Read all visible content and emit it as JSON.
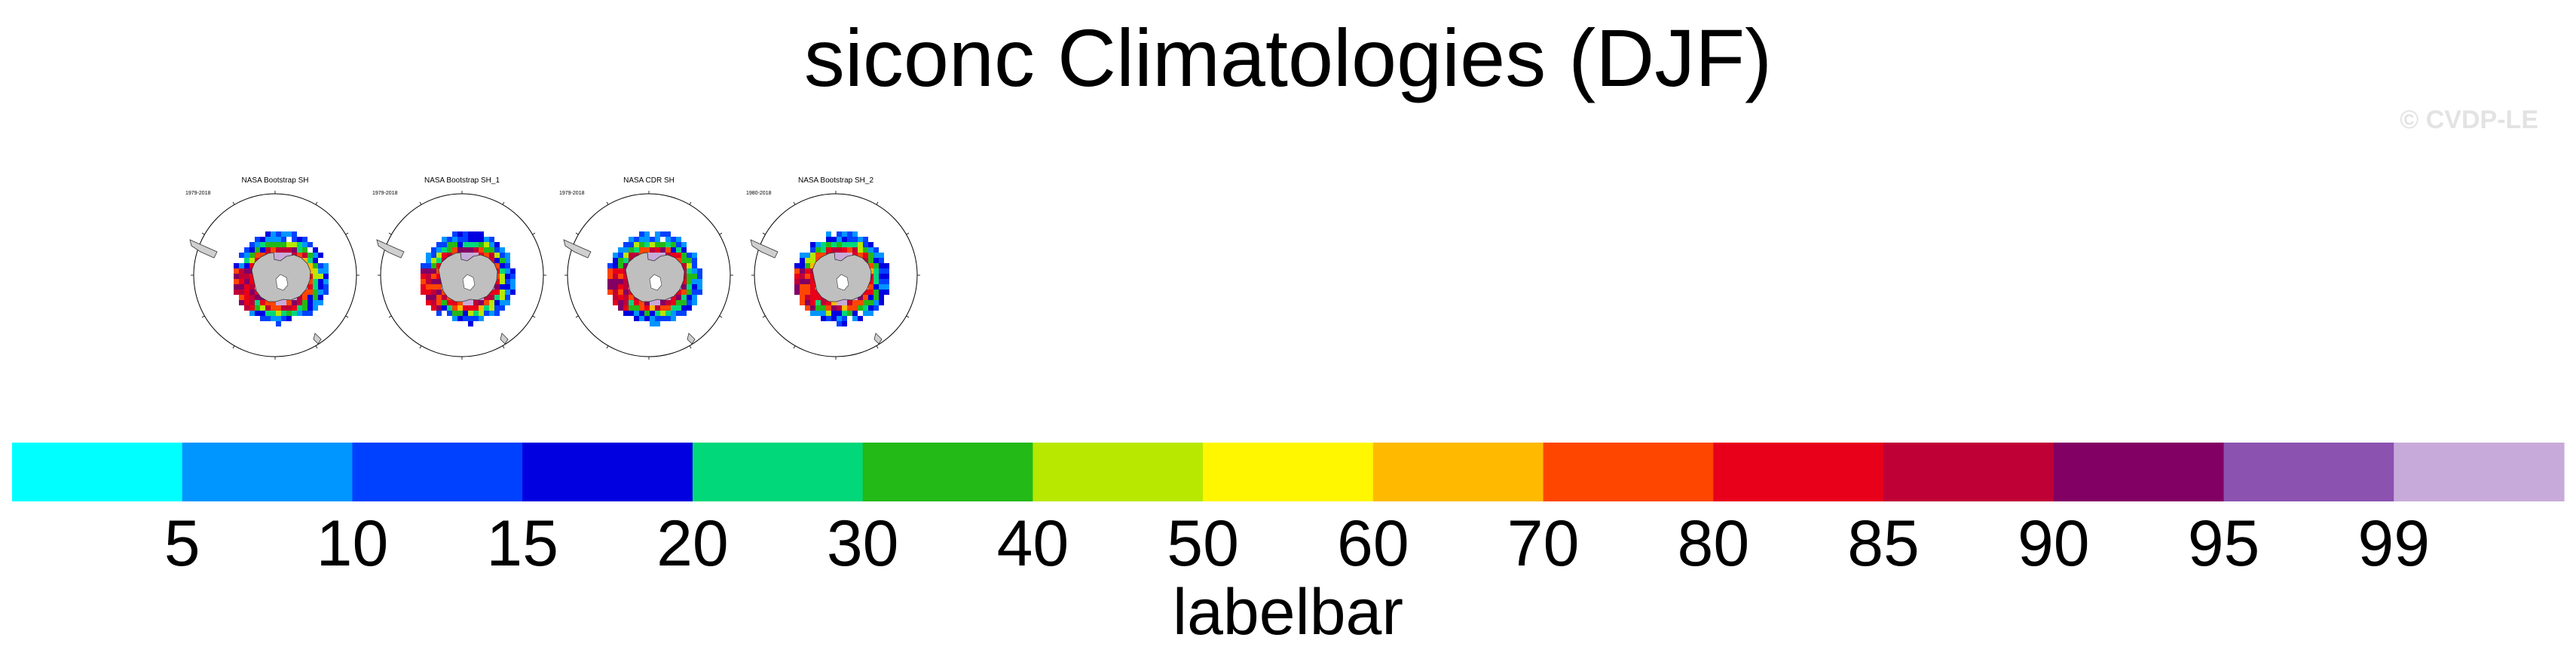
{
  "title": "siconc Climatologies (DJF)",
  "watermark": "© CVDP-LE",
  "panels": [
    {
      "title": "NASA Bootstrap SH",
      "years": "1979-2018"
    },
    {
      "title": "NASA Bootstrap SH_1",
      "years": "1979-2018"
    },
    {
      "title": "NASA CDR SH",
      "years": "1979-2018"
    },
    {
      "title": "NASA Bootstrap SH_2",
      "years": "1980-2018"
    }
  ],
  "chart_data": {
    "type": "heatmap",
    "title": "siconc Climatologies (DJF)",
    "projection": "south polar stereographic",
    "colorbar": {
      "label": "labelbar",
      "levels": [
        5,
        10,
        15,
        20,
        30,
        40,
        50,
        60,
        70,
        80,
        85,
        90,
        95,
        99
      ],
      "colors": [
        "#00ffff",
        "#0096ff",
        "#0041ff",
        "#0000e0",
        "#00d87a",
        "#23b917",
        "#b8e800",
        "#fff700",
        "#ffba00",
        "#ff4600",
        "#e8001a",
        "#bf0036",
        "#820064",
        "#8c52b0",
        "#c8aada"
      ]
    }
  }
}
